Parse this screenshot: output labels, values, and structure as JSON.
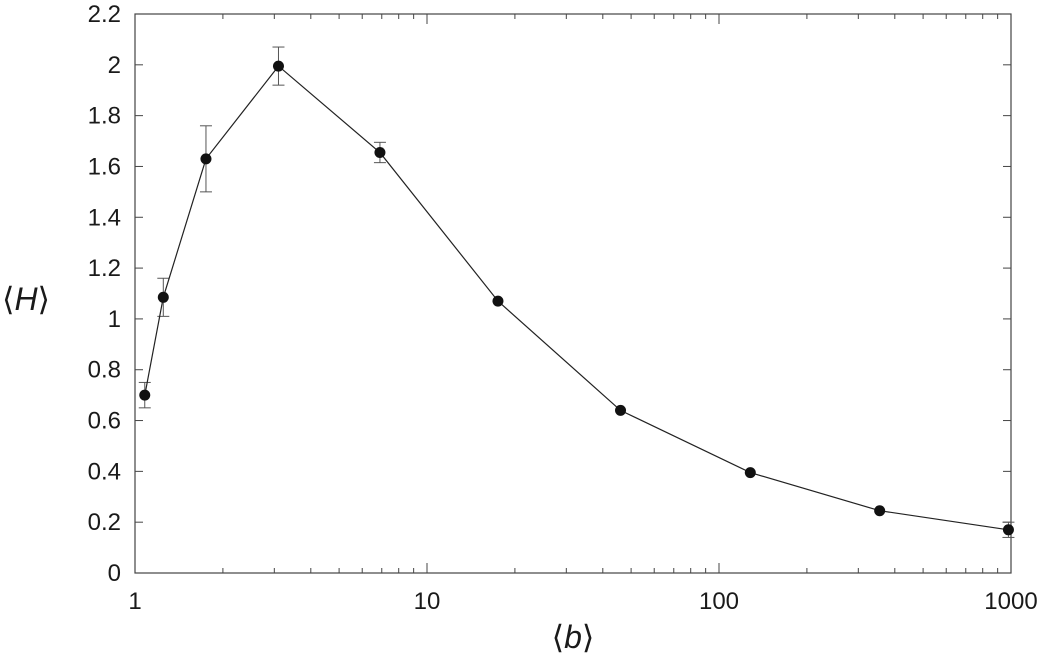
{
  "chart_data": {
    "type": "line",
    "xlabel": {
      "open": "⟨",
      "var": "b",
      "close": "⟩"
    },
    "ylabel": {
      "open": "⟨",
      "var": "H",
      "close": "⟩"
    },
    "xscale": "log",
    "xlim": [
      1,
      1000
    ],
    "ylim": [
      0,
      2.2
    ],
    "xticks": [
      {
        "value": 1,
        "label": "1"
      },
      {
        "value": 10,
        "label": "10"
      },
      {
        "value": 100,
        "label": "100"
      },
      {
        "value": 1000,
        "label": "1000"
      }
    ],
    "yticks": [
      {
        "value": 0,
        "label": "0"
      },
      {
        "value": 0.2,
        "label": "0.2"
      },
      {
        "value": 0.4,
        "label": "0.4"
      },
      {
        "value": 0.6,
        "label": "0.6"
      },
      {
        "value": 0.8,
        "label": "0.8"
      },
      {
        "value": 1,
        "label": "1"
      },
      {
        "value": 1.2,
        "label": "1.2"
      },
      {
        "value": 1.4,
        "label": "1.4"
      },
      {
        "value": 1.6,
        "label": "1.6"
      },
      {
        "value": 1.8,
        "label": "1.8"
      },
      {
        "value": 2,
        "label": "2"
      },
      {
        "value": 2.2,
        "label": "2.2"
      }
    ],
    "grid": false,
    "legend": false,
    "colors": {
      "line": "#222222",
      "marker": "#111111",
      "errorbar": "#555555",
      "frame": "#444444"
    },
    "series": [
      {
        "x": [
          1.08,
          1.25,
          1.75,
          3.1,
          6.9,
          17.5,
          46,
          128,
          355,
          980
        ],
        "y": [
          0.7,
          1.085,
          1.63,
          1.995,
          1.655,
          1.07,
          0.64,
          0.395,
          0.245,
          0.17
        ],
        "err": [
          0.05,
          0.075,
          0.13,
          0.075,
          0.04,
          0.0,
          0.0,
          0.0,
          0.0,
          0.03
        ]
      }
    ]
  }
}
